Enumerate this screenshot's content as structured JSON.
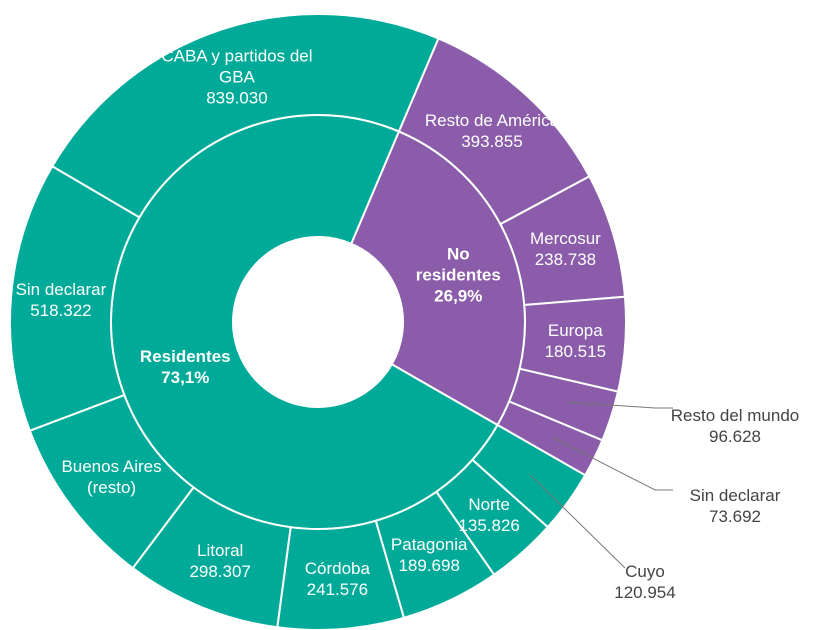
{
  "chart_data": {
    "type": "sunburst",
    "groups": [
      {
        "name": "No residentes",
        "value": 26.9,
        "value_label": "26,9%",
        "color": "#8a5ca9",
        "children": {
          "names": [
            "Resto de América",
            "Mercosur",
            "Europa",
            "Resto del mundo",
            "Sin declarar"
          ],
          "values": [
            393855,
            238738,
            180515,
            96628,
            73692
          ],
          "value_labels": [
            "393.855",
            "238.738",
            "180.515",
            "96.628",
            "73.692"
          ]
        }
      },
      {
        "name": "Residentes",
        "value": 73.1,
        "value_label": "73,1%",
        "color": "#00aa98",
        "children": {
          "names": [
            "Cuyo",
            "Norte",
            "Patagonia",
            "Córdoba",
            "Litoral",
            "Buenos Aires (resto)",
            "Sin declarar",
            "CABA y partidos del GBA"
          ],
          "values": [
            120954,
            135826,
            189698,
            241576,
            298307,
            328725,
            518322,
            839030
          ],
          "value_labels": [
            "120.954",
            "135.826",
            "189.698",
            "241.576",
            "298.307",
            null,
            "518.322",
            "839.030"
          ]
        }
      }
    ]
  }
}
